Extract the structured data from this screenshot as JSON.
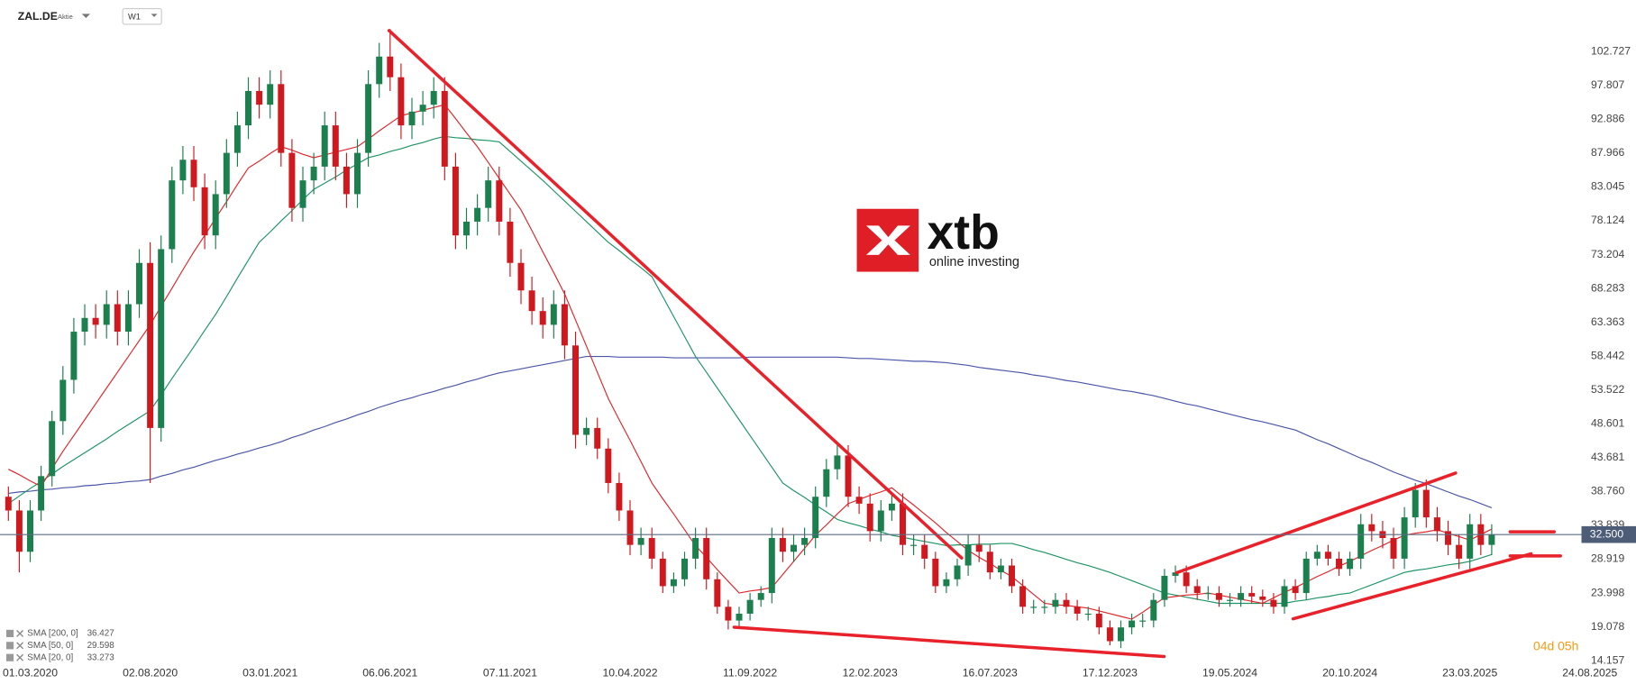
{
  "chart_data": {
    "type": "candlestick",
    "symbol": "ZAL.DE",
    "instrument": "Aktie",
    "interval": "W1",
    "countdown": "04d 05h",
    "watermark": {
      "brand": "xtb",
      "tagline": "online investing"
    },
    "up_color": "#1b7f4e",
    "down_color": "#d0191f",
    "grid": false,
    "categories": [
      null,
      null,
      "01.03.2020",
      null,
      null,
      null,
      null,
      null,
      null,
      null,
      null,
      null,
      null,
      "02.08.2020",
      null,
      null,
      null,
      null,
      null,
      null,
      null,
      null,
      null,
      null,
      "03.01.2021",
      null,
      null,
      null,
      null,
      null,
      null,
      null,
      null,
      null,
      null,
      "06.06.2021",
      null,
      null,
      null,
      null,
      null,
      null,
      null,
      null,
      null,
      null,
      "07.11.2021",
      null,
      null,
      null,
      null,
      null,
      null,
      null,
      null,
      null,
      null,
      "10.04.2022",
      null,
      null,
      null,
      null,
      null,
      null,
      null,
      null,
      null,
      null,
      "11.09.2022",
      null,
      null,
      null,
      null,
      null,
      null,
      null,
      null,
      null,
      null,
      "12.02.2023",
      null,
      null,
      null,
      null,
      null,
      null,
      null,
      null,
      null,
      null,
      "16.07.2023",
      null,
      null,
      null,
      null,
      null,
      null,
      null,
      null,
      null,
      null,
      "17.12.2023",
      null,
      null,
      null,
      null,
      null,
      null,
      null,
      null,
      null,
      null,
      "19.05.2024",
      null,
      null,
      null,
      null,
      null,
      null,
      null,
      null,
      null,
      null,
      "20.10.2024",
      null,
      null,
      null,
      null,
      null,
      null,
      null,
      null,
      null,
      null,
      "23.03.2025",
      null,
      null,
      null,
      null,
      null,
      null,
      null,
      null,
      null,
      null,
      "24.08.2025"
    ],
    "open": [
      38,
      36,
      30,
      36,
      41,
      49,
      55,
      62,
      64,
      63,
      66,
      62,
      66,
      72,
      48,
      74,
      84,
      87,
      83,
      76,
      82,
      88,
      92,
      97,
      95,
      98,
      88,
      80,
      84,
      86,
      92,
      86,
      82,
      88,
      98,
      102,
      99,
      92,
      94,
      95,
      97,
      86,
      76,
      78,
      80,
      84,
      78,
      72,
      68,
      65,
      63,
      66,
      60,
      47,
      48,
      45,
      40,
      36,
      31,
      32,
      29,
      25,
      26,
      29,
      32,
      26,
      22,
      20,
      21,
      23,
      24,
      32,
      30,
      31,
      32,
      38,
      42,
      44,
      38,
      37,
      33,
      36,
      37,
      31,
      31,
      29,
      25,
      26,
      28,
      31,
      30,
      27,
      28,
      25,
      22,
      22,
      22,
      23,
      22,
      21,
      21,
      19,
      17,
      19,
      20,
      20,
      23,
      26.5,
      27,
      25,
      24,
      24,
      23,
      23,
      24,
      23.5,
      23,
      22,
      25,
      24,
      29,
      30,
      29,
      27.5,
      29,
      34,
      33,
      32,
      29,
      35,
      39,
      35,
      33,
      31,
      29,
      34,
      31,
      null,
      null,
      null,
      null,
      null,
      null,
      null,
      null,
      null
    ],
    "high": [
      39.5,
      37.5,
      37.5,
      42.5,
      50.5,
      57,
      64,
      66,
      66,
      68,
      68,
      68,
      74,
      75,
      76,
      86,
      89,
      89,
      85,
      84,
      90,
      94,
      99,
      99,
      100,
      100,
      90,
      86,
      88,
      94,
      94,
      88,
      90,
      100,
      104,
      106,
      101,
      96,
      97,
      99,
      99,
      88,
      80,
      82,
      86,
      86,
      80,
      74,
      70,
      67,
      68,
      68,
      62,
      49.5,
      49.5,
      46.5,
      41.5,
      37.5,
      33.5,
      33.5,
      30,
      27,
      30,
      33.5,
      33.5,
      27,
      23,
      22,
      24,
      25,
      33.5,
      33.5,
      32.5,
      33.5,
      39.5,
      43.5,
      45.5,
      45.5,
      39.5,
      38.5,
      37.5,
      38.5,
      38.5,
      32.5,
      32.5,
      30,
      27,
      29,
      32.5,
      32.5,
      31,
      29,
      29,
      26,
      23,
      23,
      24,
      24,
      23,
      22,
      22,
      20,
      20,
      21,
      21,
      24,
      27.5,
      28,
      28,
      26,
      25,
      25,
      24,
      25,
      25,
      24.5,
      24,
      26,
      26,
      30,
      31,
      31,
      30,
      30,
      35.5,
      35.5,
      34.5,
      33.5,
      36.5,
      40,
      40.5,
      36.5,
      34.5,
      32.5,
      35.5,
      35.5,
      34,
      null,
      null,
      null,
      null,
      null,
      null,
      null,
      null,
      null
    ],
    "low": [
      34.5,
      27,
      28.5,
      34.5,
      39.5,
      47,
      53,
      60,
      61,
      61,
      60,
      60,
      64,
      40,
      46,
      72,
      82,
      81,
      74,
      74,
      80,
      86,
      90,
      93,
      93,
      86,
      78,
      78,
      82,
      84,
      84,
      80,
      80,
      86,
      96,
      97,
      90,
      90,
      92,
      93,
      84,
      74,
      74,
      76,
      78,
      76,
      70,
      66,
      63,
      61,
      61,
      58,
      45,
      45.5,
      43.5,
      38.5,
      34.5,
      29.5,
      29.5,
      27.5,
      24,
      24,
      25,
      27.5,
      24.5,
      21,
      18.7,
      19,
      20,
      22,
      22.5,
      28.5,
      28.5,
      29.5,
      30.5,
      36.5,
      40.5,
      36.5,
      35.5,
      31.5,
      31.5,
      34.5,
      29.5,
      29.5,
      27.5,
      24,
      24,
      25,
      26.5,
      28.5,
      26,
      26,
      24,
      21,
      21,
      21,
      21,
      21,
      20,
      20,
      18,
      16.4,
      16,
      18,
      19,
      19,
      22,
      25.5,
      24,
      23,
      23,
      22,
      22,
      22,
      22.5,
      22,
      21,
      21,
      23,
      23,
      28,
      28,
      26.5,
      26.5,
      27.5,
      31.5,
      30.5,
      27.5,
      27.5,
      33.5,
      33.5,
      31.5,
      29.5,
      27.5,
      27.5,
      29.5,
      29.5,
      null,
      null,
      null,
      null,
      null,
      null,
      null,
      null,
      null
    ],
    "close": [
      36,
      30,
      36,
      41,
      49,
      55,
      62,
      64,
      63,
      66,
      62,
      66,
      72,
      48,
      74,
      84,
      87,
      83,
      76,
      82,
      88,
      92,
      97,
      95,
      98,
      88,
      80,
      84,
      86,
      92,
      86,
      82,
      88,
      98,
      102,
      99,
      92,
      94,
      95,
      97,
      86,
      76,
      78,
      80,
      84,
      78,
      72,
      68,
      65,
      63,
      66,
      60,
      47,
      48,
      45,
      40,
      36,
      31,
      32,
      29,
      25,
      26,
      29,
      32,
      26,
      22,
      20,
      21,
      23,
      24,
      32,
      30,
      31,
      32,
      38,
      42,
      44,
      38,
      37,
      33,
      36,
      37,
      31,
      31,
      29,
      25,
      26,
      28,
      31,
      30,
      27,
      28,
      25,
      22,
      22,
      22,
      23,
      22,
      21,
      21,
      19,
      17,
      19,
      20,
      20,
      23,
      26.5,
      27,
      25,
      24,
      24,
      23,
      23,
      24,
      23.5,
      23,
      22,
      25,
      24,
      29,
      30,
      29,
      27.5,
      29,
      34,
      33,
      32,
      29,
      35,
      39,
      35,
      33,
      31,
      29,
      34,
      31,
      32.5,
      null,
      null,
      null,
      null,
      null,
      null,
      null,
      null,
      null
    ],
    "series": [
      {
        "name": "SMA [200, 0]",
        "last_value": 36.427,
        "color": "#4a56a8",
        "values": [
          38.5,
          38.7,
          38.8,
          39.0,
          39.1,
          39.3,
          39.4,
          39.6,
          39.7,
          39.9,
          40.0,
          40.2,
          40.3,
          40.5,
          41.0,
          41.4,
          41.9,
          42.3,
          42.8,
          43.3,
          43.7,
          44.2,
          44.6,
          45.1,
          45.5,
          46.0,
          46.6,
          47.1,
          47.7,
          48.2,
          48.8,
          49.3,
          49.9,
          50.4,
          51.0,
          51.5,
          52.0,
          52.4,
          52.9,
          53.3,
          53.8,
          54.2,
          54.7,
          55.1,
          55.6,
          56.0,
          56.3,
          56.6,
          56.9,
          57.2,
          57.5,
          57.8,
          58.1,
          58.4,
          58.4,
          58.4,
          58.3,
          58.3,
          58.3,
          58.3,
          58.3,
          58.2,
          58.2,
          58.2,
          58.2,
          58.2,
          58.2,
          58.2,
          58.3,
          58.3,
          58.3,
          58.3,
          58.3,
          58.3,
          58.3,
          58.3,
          58.3,
          58.2,
          58.1,
          58.1,
          58.0,
          57.9,
          57.8,
          57.7,
          57.7,
          57.6,
          57.5,
          57.3,
          57.1,
          56.8,
          56.6,
          56.4,
          56.2,
          56.0,
          55.7,
          55.5,
          55.2,
          54.9,
          54.7,
          54.4,
          54.1,
          53.8,
          53.5,
          53.3,
          53.0,
          52.7,
          52.3,
          51.9,
          51.5,
          51.2,
          50.8,
          50.4,
          50.0,
          49.6,
          49.2,
          48.9,
          48.5,
          48.1,
          47.7,
          47.0,
          46.3,
          45.7,
          45.0,
          44.3,
          43.6,
          43.0,
          42.3,
          41.6,
          41.0,
          40.4,
          39.9,
          39.3,
          38.7,
          38.1,
          37.6,
          37.0,
          36.4,
          null,
          null,
          null,
          null,
          null,
          null,
          null,
          null,
          null
        ]
      },
      {
        "name": "SMA [50, 0]",
        "last_value": 29.598,
        "color": "#1f9466",
        "values": [
          37.0,
          38.1,
          39.2,
          40.2,
          41.3,
          42.4,
          43.4,
          44.4,
          45.4,
          46.4,
          47.5,
          48.5,
          49.5,
          50.5,
          52.8,
          55.2,
          57.5,
          59.8,
          62.2,
          64.5,
          67.1,
          69.8,
          72.4,
          75.0,
          76.5,
          78.1,
          79.6,
          81.2,
          82.7,
          83.6,
          84.5,
          85.5,
          86.4,
          87.3,
          87.7,
          88.2,
          88.6,
          89.1,
          89.5,
          90.0,
          90.4,
          90.2,
          90.1,
          89.9,
          89.8,
          89.6,
          88.2,
          86.8,
          85.4,
          84.0,
          82.5,
          81.0,
          79.5,
          78.0,
          76.5,
          75.0,
          73.8,
          72.5,
          71.3,
          70.0,
          67.1,
          64.2,
          61.3,
          58.4,
          56.1,
          53.8,
          51.5,
          49.2,
          46.9,
          44.6,
          42.3,
          40.0,
          38.9,
          37.9,
          36.8,
          35.8,
          34.7,
          34.2,
          33.8,
          33.3,
          32.9,
          32.4,
          32.1,
          31.8,
          31.5,
          31.2,
          30.9,
          31.0,
          31.0,
          31.1,
          31.1,
          31.2,
          31.2,
          30.8,
          30.3,
          29.9,
          29.4,
          28.9,
          28.4,
          28.0,
          27.5,
          27.0,
          26.4,
          25.8,
          25.2,
          24.6,
          24.0,
          23.7,
          23.4,
          23.1,
          22.8,
          22.5,
          22.5,
          22.5,
          22.5,
          22.5,
          22.5,
          22.5,
          22.8,
          23.0,
          23.3,
          23.5,
          23.8,
          24.0,
          24.6,
          25.2,
          25.8,
          26.4,
          27.0,
          27.3,
          27.5,
          27.8,
          28.1,
          28.3,
          28.6,
          29.1,
          29.6,
          null,
          null,
          null,
          null,
          null,
          null,
          null,
          null,
          null
        ]
      },
      {
        "name": "SMA [20, 0]",
        "last_value": 33.273,
        "color": "#e0262b",
        "values": [
          42.0,
          41.2,
          40.3,
          39.5,
          42.1,
          44.6,
          46.9,
          49.2,
          51.5,
          53.8,
          56.1,
          58.4,
          60.7,
          63.0,
          65.7,
          68.3,
          71.0,
          73.6,
          76.0,
          78.5,
          80.9,
          83.4,
          85.8,
          86.8,
          87.9,
          88.9,
          88.4,
          87.8,
          87.3,
          87.7,
          88.1,
          88.5,
          88.9,
          90.0,
          91.2,
          92.3,
          93.4,
          93.8,
          94.2,
          94.6,
          95.0,
          93.0,
          90.9,
          88.9,
          86.6,
          84.3,
          82.0,
          79.7,
          76.7,
          73.6,
          70.6,
          67.5,
          63.7,
          59.9,
          56.1,
          52.3,
          49.2,
          46.2,
          43.1,
          40.0,
          37.7,
          35.5,
          33.2,
          30.9,
          29.2,
          27.4,
          25.7,
          24.0,
          24.3,
          24.5,
          24.8,
          26.7,
          28.6,
          30.5,
          32.4,
          33.9,
          35.5,
          37.0,
          37.6,
          38.2,
          38.7,
          39.3,
          38.0,
          36.8,
          35.5,
          34.2,
          32.8,
          31.5,
          30.2,
          29.2,
          28.3,
          27.3,
          26.4,
          25.1,
          23.8,
          22.5,
          22.3,
          22.2,
          22.0,
          21.8,
          21.4,
          21.0,
          20.6,
          20.2,
          21.2,
          22.3,
          23.3,
          23.5,
          23.7,
          23.8,
          24.0,
          23.7,
          23.4,
          23.1,
          22.8,
          22.5,
          23.3,
          24.1,
          24.8,
          25.6,
          26.4,
          27.1,
          27.9,
          28.6,
          29.4,
          30.2,
          30.9,
          31.7,
          32.4,
          32.7,
          32.9,
          33.2,
          32.7,
          32.2,
          31.7,
          32.5,
          33.3,
          null,
          null,
          null,
          null,
          null,
          null,
          null,
          null,
          null
        ]
      }
    ],
    "last_price": {
      "value": 32.5,
      "label": "32.500"
    },
    "ylim": [
      13.85,
      110.2
    ],
    "yticks": [
      102.727,
      97.807,
      92.886,
      87.966,
      83.045,
      78.124,
      73.204,
      68.283,
      63.363,
      58.442,
      53.522,
      48.601,
      43.681,
      {
        "value": 38.76,
        "label": "38.760"
      },
      33.839,
      28.919,
      23.998,
      19.078,
      14.157
    ]
  }
}
